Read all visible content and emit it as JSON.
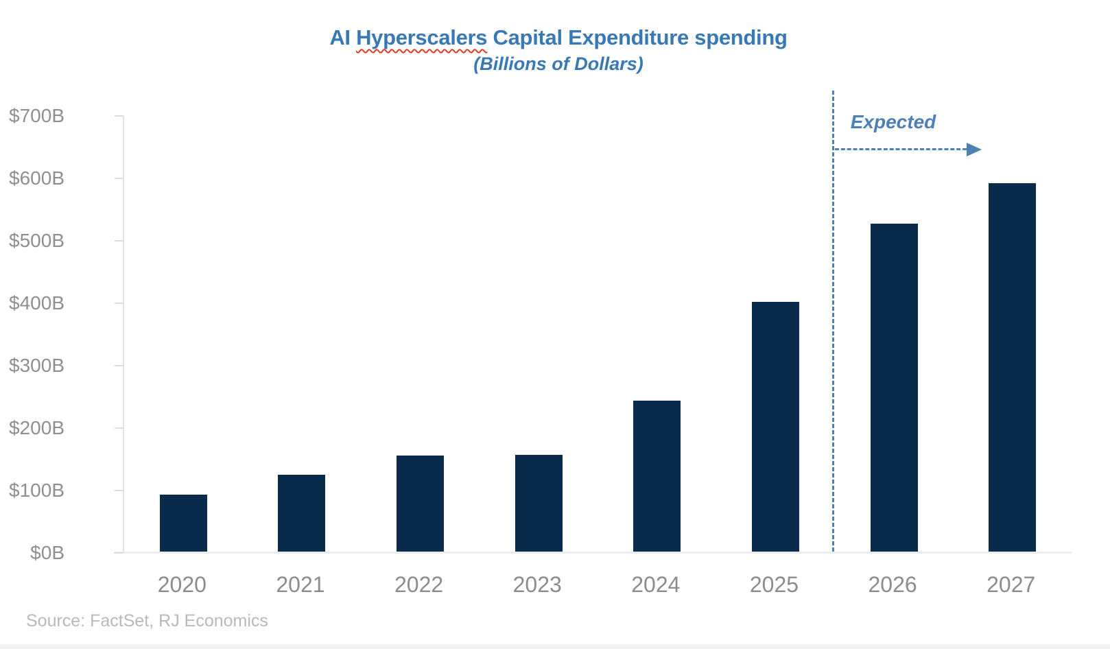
{
  "title": {
    "prefix": "AI ",
    "misspelled_word": "Hyperscalers",
    "suffix": " Capital Expenditure spending",
    "subtitle": "(Billions of Dollars)"
  },
  "annotation": {
    "expected_label": "Expected"
  },
  "source_note": "Source: FactSet, RJ Economics",
  "colors": {
    "bar_navy": "#0a2b4c",
    "title_blue": "#3878b5",
    "steel_blue": "#4d80b4",
    "squiggle_red": "#e03b24"
  },
  "chart_data": {
    "type": "bar",
    "title": "AI Hyperscalers Capital Expenditure spending",
    "subtitle": "(Billions of Dollars)",
    "categories": [
      "2020",
      "2021",
      "2022",
      "2023",
      "2024",
      "2025",
      "2026",
      "2027"
    ],
    "values": [
      91,
      123,
      154,
      155,
      242,
      400,
      525,
      590
    ],
    "unit": "Billions of Dollars",
    "ylim": [
      0,
      700
    ],
    "ytick_step": 100,
    "ytick_labels": [
      "$0B",
      "$100B",
      "$200B",
      "$300B",
      "$400B",
      "$500B",
      "$600B",
      "$700B"
    ],
    "grid": false,
    "legend": false,
    "expected_from_category": "2026",
    "bar_color": "#0a2b4c"
  }
}
